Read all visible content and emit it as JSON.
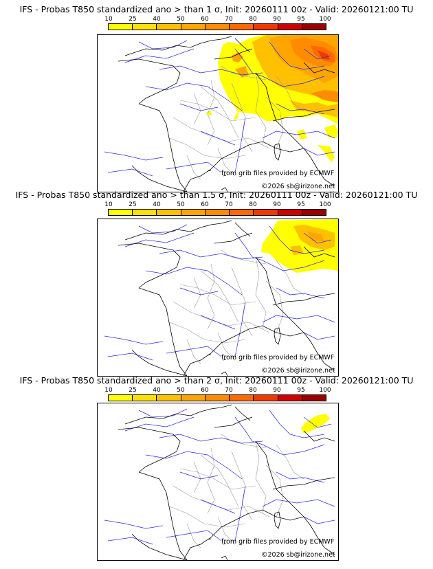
{
  "colorbar": {
    "ticks": [
      "10",
      "25",
      "40",
      "50",
      "60",
      "70",
      "80",
      "90",
      "95",
      "100"
    ],
    "colors": [
      "#ffff00",
      "#ffe000",
      "#ffc000",
      "#ffa500",
      "#ff8c00",
      "#ff6a00",
      "#ee3a00",
      "#d10000",
      "#9a0000",
      "#5c0000"
    ]
  },
  "panels": [
    {
      "title": "IFS - Probas T850  standardized ano > than 1 σ, Init: 20260111 00z - Valid: 20260121:00 TU",
      "credit_ecmwf": "from grib files provided by ECMWF",
      "credit_site": "©2026 sb@irizone.net"
    },
    {
      "title": "IFS - Probas T850  standardized ano > than 1.5 σ, Init: 20260111 00z - Valid: 20260121:00 TU",
      "credit_ecmwf": "from grib files provided by ECMWF",
      "credit_site": "©2026 sb@irizone.net"
    },
    {
      "title": "IFS - Probas T850  standardized ano > than 2 σ, Init: 20260111 00z - Valid: 20260121:00 TU",
      "credit_ecmwf": "from grib files provided by ECMWF",
      "credit_site": "©2026 sb@irizone.net"
    }
  ]
}
